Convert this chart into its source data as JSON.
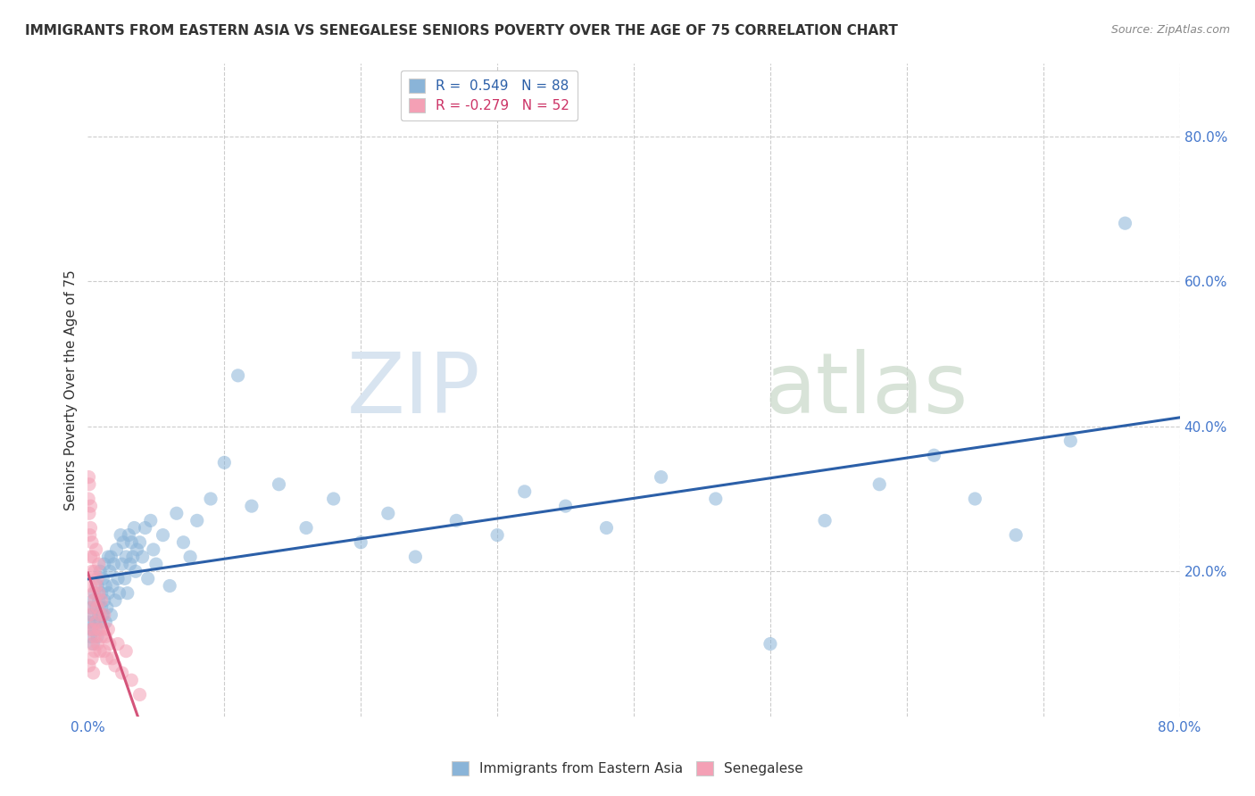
{
  "title": "IMMIGRANTS FROM EASTERN ASIA VS SENEGALESE SENIORS POVERTY OVER THE AGE OF 75 CORRELATION CHART",
  "source": "Source: ZipAtlas.com",
  "ylabel": "Seniors Poverty Over the Age of 75",
  "xlim": [
    0.0,
    0.8
  ],
  "ylim": [
    0.0,
    0.9
  ],
  "xticks": [
    0.0,
    0.1,
    0.2,
    0.3,
    0.4,
    0.5,
    0.6,
    0.7,
    0.8
  ],
  "ytick_positions": [
    0.2,
    0.4,
    0.6,
    0.8
  ],
  "ytick_labels": [
    "20.0%",
    "40.0%",
    "60.0%",
    "80.0%"
  ],
  "grid_color": "#cccccc",
  "background_color": "#ffffff",
  "watermark_zip": "ZIP",
  "watermark_atlas": "atlas",
  "blue_R": 0.549,
  "blue_N": 88,
  "pink_R": -0.279,
  "pink_N": 52,
  "blue_color": "#8ab4d8",
  "pink_color": "#f4a0b5",
  "blue_line_color": "#2b5fa8",
  "pink_line_color": "#d4547a",
  "scatter_alpha": 0.55,
  "scatter_size": 120,
  "blue_scatter_x": [
    0.001,
    0.002,
    0.002,
    0.003,
    0.003,
    0.004,
    0.004,
    0.005,
    0.005,
    0.006,
    0.006,
    0.007,
    0.007,
    0.008,
    0.008,
    0.009,
    0.009,
    0.01,
    0.01,
    0.011,
    0.011,
    0.012,
    0.012,
    0.013,
    0.013,
    0.014,
    0.015,
    0.015,
    0.016,
    0.017,
    0.017,
    0.018,
    0.019,
    0.02,
    0.021,
    0.022,
    0.023,
    0.024,
    0.025,
    0.026,
    0.027,
    0.028,
    0.029,
    0.03,
    0.031,
    0.032,
    0.033,
    0.034,
    0.035,
    0.036,
    0.038,
    0.04,
    0.042,
    0.044,
    0.046,
    0.048,
    0.05,
    0.055,
    0.06,
    0.065,
    0.07,
    0.075,
    0.08,
    0.09,
    0.1,
    0.11,
    0.12,
    0.14,
    0.16,
    0.18,
    0.2,
    0.22,
    0.24,
    0.27,
    0.3,
    0.32,
    0.35,
    0.38,
    0.42,
    0.46,
    0.5,
    0.54,
    0.58,
    0.62,
    0.65,
    0.68,
    0.72,
    0.76
  ],
  "blue_scatter_y": [
    0.13,
    0.11,
    0.15,
    0.12,
    0.14,
    0.1,
    0.16,
    0.13,
    0.17,
    0.12,
    0.15,
    0.11,
    0.18,
    0.14,
    0.16,
    0.13,
    0.2,
    0.15,
    0.17,
    0.14,
    0.19,
    0.16,
    0.21,
    0.13,
    0.18,
    0.15,
    0.22,
    0.17,
    0.2,
    0.14,
    0.22,
    0.18,
    0.21,
    0.16,
    0.23,
    0.19,
    0.17,
    0.25,
    0.21,
    0.24,
    0.19,
    0.22,
    0.17,
    0.25,
    0.21,
    0.24,
    0.22,
    0.26,
    0.2,
    0.23,
    0.24,
    0.22,
    0.26,
    0.19,
    0.27,
    0.23,
    0.21,
    0.25,
    0.18,
    0.28,
    0.24,
    0.22,
    0.27,
    0.3,
    0.35,
    0.47,
    0.29,
    0.32,
    0.26,
    0.3,
    0.24,
    0.28,
    0.22,
    0.27,
    0.25,
    0.31,
    0.29,
    0.26,
    0.33,
    0.3,
    0.1,
    0.27,
    0.32,
    0.36,
    0.3,
    0.25,
    0.38,
    0.68
  ],
  "pink_scatter_x": [
    0.0005,
    0.0007,
    0.001,
    0.001,
    0.001,
    0.001,
    0.0015,
    0.002,
    0.002,
    0.002,
    0.002,
    0.002,
    0.003,
    0.003,
    0.003,
    0.003,
    0.003,
    0.004,
    0.004,
    0.004,
    0.004,
    0.005,
    0.005,
    0.005,
    0.005,
    0.006,
    0.006,
    0.006,
    0.007,
    0.007,
    0.007,
    0.008,
    0.008,
    0.008,
    0.009,
    0.009,
    0.01,
    0.01,
    0.011,
    0.012,
    0.012,
    0.013,
    0.014,
    0.015,
    0.016,
    0.018,
    0.02,
    0.022,
    0.025,
    0.028,
    0.032,
    0.038
  ],
  "pink_scatter_y": [
    0.3,
    0.33,
    0.28,
    0.32,
    0.07,
    0.14,
    0.25,
    0.29,
    0.12,
    0.18,
    0.22,
    0.26,
    0.1,
    0.15,
    0.2,
    0.24,
    0.08,
    0.12,
    0.17,
    0.22,
    0.06,
    0.11,
    0.16,
    0.2,
    0.09,
    0.13,
    0.18,
    0.23,
    0.1,
    0.15,
    0.19,
    0.12,
    0.17,
    0.21,
    0.09,
    0.14,
    0.11,
    0.16,
    0.12,
    0.09,
    0.14,
    0.11,
    0.08,
    0.12,
    0.1,
    0.08,
    0.07,
    0.1,
    0.06,
    0.09,
    0.05,
    0.03
  ],
  "legend_blue_label": "Immigrants from Eastern Asia",
  "legend_pink_label": "Senegalese",
  "title_fontsize": 11,
  "source_fontsize": 9,
  "tick_fontsize": 11,
  "legend_fontsize": 11
}
